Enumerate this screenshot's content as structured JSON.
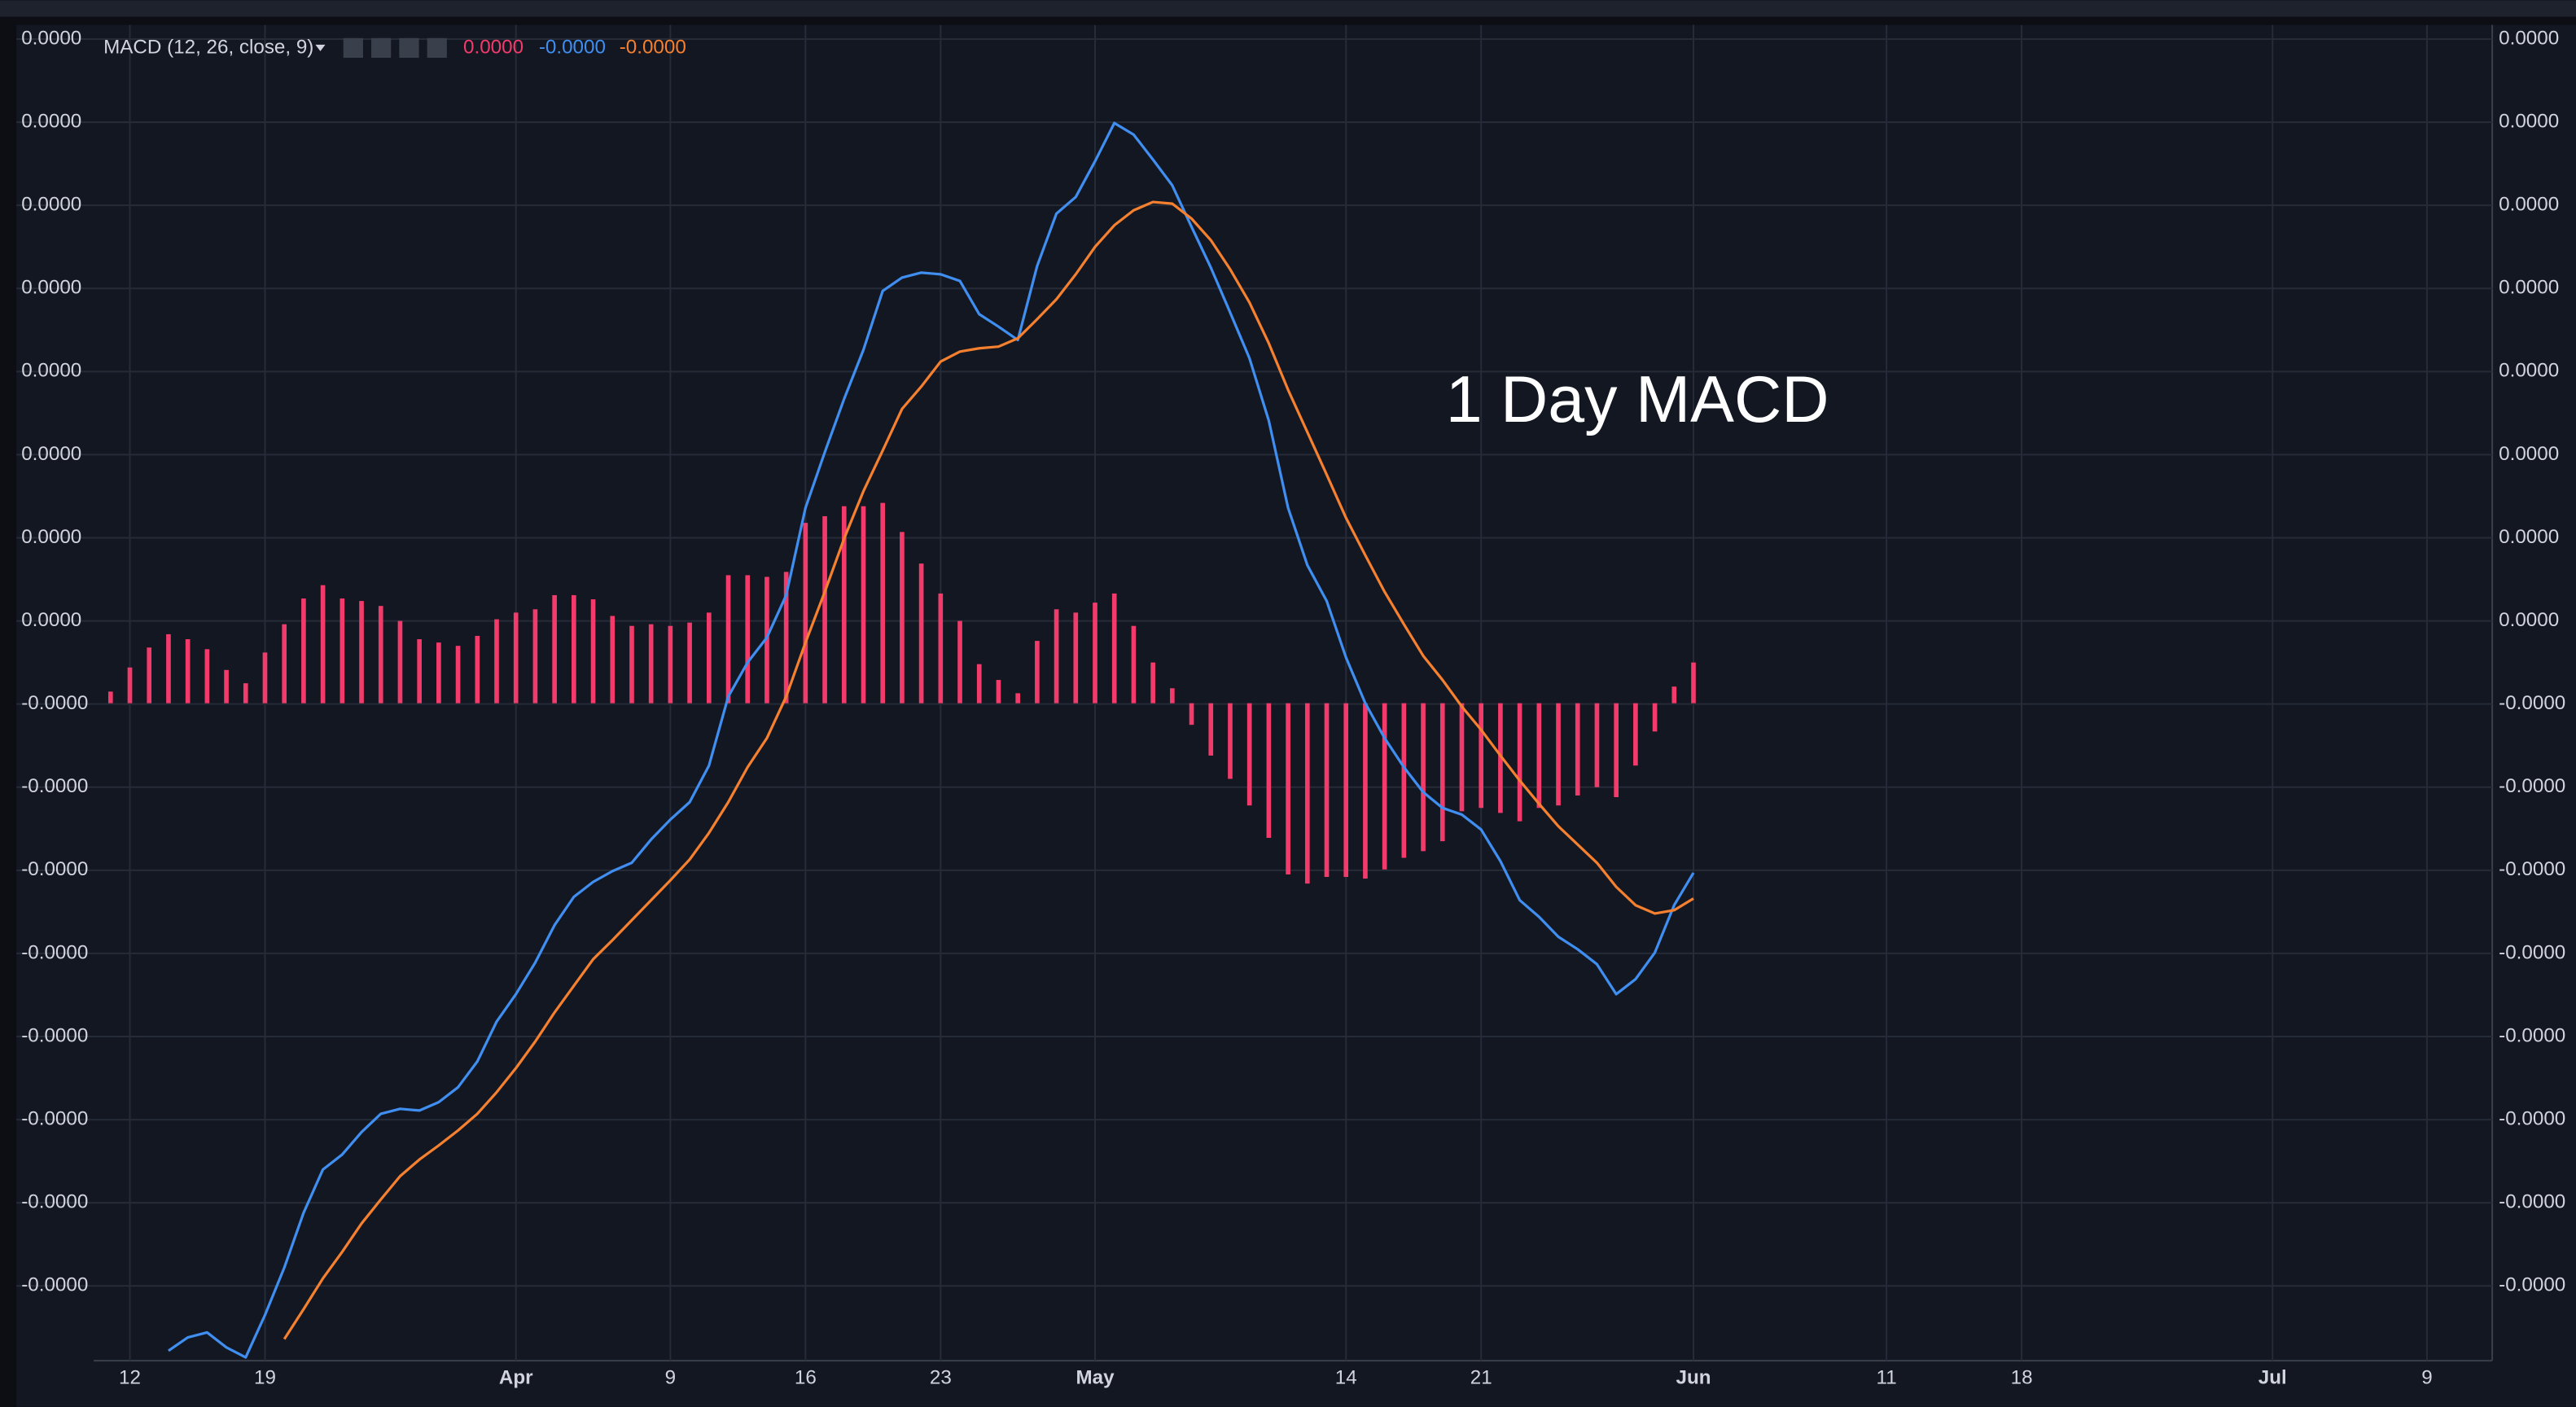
{
  "chart_data": {
    "type": "combo",
    "indicator": "MACD (12, 26, close, 9)",
    "annotation": "1 Day MACD",
    "categories": [
      null,
      "12",
      null,
      null,
      null,
      null,
      null,
      null,
      "19",
      null,
      null,
      null,
      null,
      null,
      null,
      null,
      null,
      null,
      null,
      null,
      null,
      "Apr",
      null,
      null,
      null,
      null,
      null,
      null,
      null,
      "9",
      null,
      null,
      null,
      null,
      null,
      null,
      "16",
      null,
      null,
      null,
      null,
      null,
      null,
      "23",
      null,
      null,
      null,
      null,
      null,
      null,
      null,
      "May",
      null,
      null,
      null,
      null,
      null,
      null,
      null,
      null,
      null,
      null,
      null,
      null,
      "14",
      null,
      null,
      null,
      null,
      null,
      null,
      "21",
      null,
      null,
      null,
      null,
      null,
      null,
      null,
      null,
      null,
      null,
      "Jun",
      null,
      null,
      null,
      null,
      null,
      null,
      null,
      null,
      null,
      "11",
      null,
      null,
      null,
      null,
      null,
      null,
      "18",
      null,
      null,
      null,
      null,
      null,
      null,
      null,
      null,
      null,
      null,
      null,
      null,
      "Jul",
      null,
      null,
      null,
      null,
      null,
      null,
      null,
      "9",
      null
    ],
    "series": [
      {
        "type": "bar",
        "color": "#f23b6b",
        "legend_value": "0.0000",
        "values": [
          1.4e-07,
          4.3e-07,
          6.7e-07,
          8.3e-07,
          7.7e-07,
          6.5e-07,
          4e-07,
          2.4e-07,
          6.1e-07,
          9.5e-07,
          1.26e-06,
          1.42e-06,
          1.26e-06,
          1.23e-06,
          1.17e-06,
          9.9e-07,
          7.7e-07,
          7.3e-07,
          6.9e-07,
          8.1e-07,
          1.01e-06,
          1.09e-06,
          1.13e-06,
          1.3e-06,
          1.3e-06,
          1.25e-06,
          1.05e-06,
          9.3e-07,
          9.5e-07,
          9.3e-07,
          9.7e-07,
          1.09e-06,
          1.54e-06,
          1.54e-06,
          1.52e-06,
          1.58e-06,
          2.17e-06,
          2.25e-06,
          2.37e-06,
          2.37e-06,
          2.41e-06,
          2.06e-06,
          1.68e-06,
          1.32e-06,
          9.9e-07,
          4.7e-07,
          2.8e-07,
          1.2e-07,
          7.5e-07,
          1.13e-06,
          1.09e-06,
          1.21e-06,
          1.32e-06,
          9.3e-07,
          4.9e-07,
          1.8e-07,
          -2.6e-07,
          -6.3e-07,
          -9.1e-07,
          -1.23e-06,
          -1.62e-06,
          -2.06e-06,
          -2.17e-06,
          -2.09e-06,
          -2.09e-06,
          -2.11e-06,
          -2e-06,
          -1.86e-06,
          -1.78e-06,
          -1.66e-06,
          -1.3e-06,
          -1.26e-06,
          -1.32e-06,
          -1.42e-06,
          -1.26e-06,
          -1.23e-06,
          -1.11e-06,
          -1.01e-06,
          -1.13e-06,
          -7.5e-07,
          -3.4e-07,
          2e-07,
          4.9e-07,
          null,
          null,
          null,
          null,
          null,
          null,
          null,
          null,
          null,
          null,
          null,
          null,
          null,
          null,
          null,
          null,
          null,
          null,
          null,
          null,
          null,
          null,
          null,
          null,
          null,
          null,
          null,
          null,
          null,
          null,
          null,
          null,
          null,
          null,
          null,
          null,
          null,
          null,
          null
        ]
      },
      {
        "type": "line",
        "color": "#3f8ef0",
        "legend_value": "-0.0000",
        "values": [
          null,
          null,
          null,
          -7.79e-06,
          -7.63e-06,
          -7.57e-06,
          -7.75e-06,
          -7.87e-06,
          -7.36e-06,
          -6.79e-06,
          -6.13e-06,
          -5.61e-06,
          -5.43e-06,
          -5.16e-06,
          -4.94e-06,
          -4.88e-06,
          -4.9e-06,
          -4.8e-06,
          -4.62e-06,
          -4.31e-06,
          -3.83e-06,
          -3.5e-06,
          -3.12e-06,
          -2.67e-06,
          -2.33e-06,
          -2.15e-06,
          -2.02e-06,
          -1.92e-06,
          -1.64e-06,
          -1.4e-06,
          -1.19e-06,
          -7.5e-07,
          8e-08,
          4.9e-07,
          7.9e-07,
          1.3e-06,
          2.35e-06,
          3.02e-06,
          3.66e-06,
          4.25e-06,
          4.96e-06,
          5.12e-06,
          5.18e-06,
          5.16e-06,
          5.08e-06,
          4.68e-06,
          4.53e-06,
          4.37e-06,
          5.26e-06,
          5.89e-06,
          6.09e-06,
          6.52e-06,
          6.98e-06,
          6.84e-06,
          6.54e-06,
          6.23e-06,
          5.73e-06,
          5.24e-06,
          4.7e-06,
          4.15e-06,
          3.4e-06,
          2.35e-06,
          1.66e-06,
          1.23e-06,
          5.5e-07,
          0.0,
          -4.2e-07,
          -7.7e-07,
          -1.07e-06,
          -1.26e-06,
          -1.34e-06,
          -1.52e-06,
          -1.9e-06,
          -2.37e-06,
          -2.57e-06,
          -2.81e-06,
          -2.96e-06,
          -3.14e-06,
          -3.5e-06,
          -3.32e-06,
          -3e-06,
          -2.43e-06,
          -2.04e-06,
          null,
          null,
          null,
          null,
          null,
          null,
          null,
          null,
          null,
          null,
          null,
          null,
          null,
          null,
          null,
          null,
          null,
          null,
          null,
          null,
          null,
          null,
          null,
          null,
          null,
          null,
          null,
          null,
          null,
          null,
          null,
          null,
          null,
          null,
          null,
          null,
          null,
          null,
          null
        ]
      },
      {
        "type": "line",
        "color": "#f5802f",
        "legend_value": "-0.0000",
        "values": [
          null,
          null,
          null,
          null,
          null,
          null,
          null,
          null,
          null,
          -7.65e-06,
          -7.29e-06,
          -6.92e-06,
          -6.6e-06,
          -6.26e-06,
          -5.97e-06,
          -5.69e-06,
          -5.49e-06,
          -5.32e-06,
          -5.14e-06,
          -4.94e-06,
          -4.68e-06,
          -4.39e-06,
          -4.07e-06,
          -3.72e-06,
          -3.4e-06,
          -3.08e-06,
          -2.85e-06,
          -2.61e-06,
          -2.37e-06,
          -2.13e-06,
          -1.88e-06,
          -1.56e-06,
          -1.19e-06,
          -7.7e-07,
          -4.2e-07,
          8e-08,
          7.3e-07,
          1.34e-06,
          1.98e-06,
          2.55e-06,
          3.04e-06,
          3.54e-06,
          3.81e-06,
          4.11e-06,
          4.23e-06,
          4.27e-06,
          4.29e-06,
          4.39e-06,
          4.62e-06,
          4.86e-06,
          5.16e-06,
          5.49e-06,
          5.75e-06,
          5.93e-06,
          6.03e-06,
          6.01e-06,
          5.83e-06,
          5.57e-06,
          5.22e-06,
          4.82e-06,
          4.33e-06,
          3.77e-06,
          3.26e-06,
          2.75e-06,
          2.23e-06,
          1.78e-06,
          1.34e-06,
          9.5e-07,
          5.7e-07,
          2.8e-07,
          -4e-08,
          -3.2e-07,
          -6.3e-07,
          -9.3e-07,
          -1.21e-06,
          -1.48e-06,
          -1.7e-06,
          -1.92e-06,
          -2.21e-06,
          -2.43e-06,
          -2.53e-06,
          -2.49e-06,
          -2.35e-06,
          null,
          null,
          null,
          null,
          null,
          null,
          null,
          null,
          null,
          null,
          null,
          null,
          null,
          null,
          null,
          null,
          null,
          null,
          null,
          null,
          null,
          null,
          null,
          null,
          null,
          null,
          null,
          null,
          null,
          null,
          null,
          null,
          null,
          null,
          null,
          null,
          null,
          null,
          null
        ]
      }
    ],
    "ylim": [
      -7.91e-06,
      8.16e-06
    ],
    "yticks": [
      {
        "value": 7.99e-06,
        "label": "0.0000"
      },
      {
        "value": 6.99e-06,
        "label": "0.0000"
      },
      {
        "value": 5.99e-06,
        "label": "0.0000"
      },
      {
        "value": 4.99e-06,
        "label": "0.0000"
      },
      {
        "value": 3.99e-06,
        "label": "0.0000"
      },
      {
        "value": 2.99e-06,
        "label": "0.0000"
      },
      {
        "value": 1.99e-06,
        "label": "0.0000"
      },
      {
        "value": 9.9e-07,
        "label": "0.0000"
      },
      {
        "value": -1e-08,
        "label": "-0.0000"
      },
      {
        "value": -1.01e-06,
        "label": "-0.0000"
      },
      {
        "value": -2.01e-06,
        "label": "-0.0000"
      },
      {
        "value": -3.01e-06,
        "label": "-0.0000"
      },
      {
        "value": -4.01e-06,
        "label": "-0.0000"
      },
      {
        "value": -5.01e-06,
        "label": "-0.0000"
      },
      {
        "value": -6.01e-06,
        "label": "-0.0000"
      },
      {
        "value": -7.01e-06,
        "label": "-0.0000"
      }
    ],
    "grid": true
  }
}
